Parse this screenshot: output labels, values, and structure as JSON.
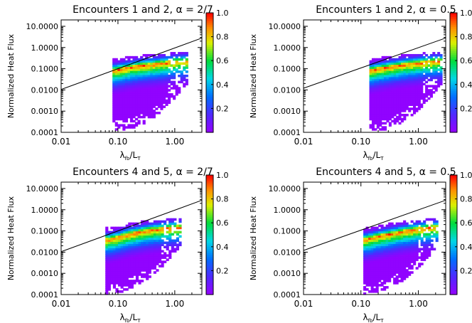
{
  "chart_data": [
    {
      "type": "heatmap",
      "title": "Encounters 1 and 2, α = 2/7",
      "xlabel": "λ",
      "xlabel_sub1": "fb",
      "xlabel_sep": "/L",
      "xlabel_sub2": "T",
      "ylabel": "Normalized Heat Flux",
      "xscale": "log",
      "yscale": "log",
      "xlim": [
        0.01,
        3.0
      ],
      "ylim": [
        0.0001,
        20.0
      ],
      "xticks": [
        0.01,
        0.1,
        1.0
      ],
      "xtick_labels": [
        "0.01",
        "0.10",
        "1.00"
      ],
      "yticks": [
        0.0001,
        0.001,
        0.01,
        0.1,
        1.0,
        10.0
      ],
      "ytick_labels": [
        "0.0001",
        "0.0010",
        "0.0100",
        "0.1000",
        "1.0000",
        "10.0000"
      ],
      "colorbar": {
        "range": [
          0,
          1.0
        ],
        "ticks": [
          0.2,
          0.4,
          0.6,
          0.8,
          1.0
        ],
        "tick_labels": [
          "0.2",
          "0.4",
          "0.6",
          "0.8",
          "1.0"
        ]
      },
      "reference_line": {
        "slope": 1.2857,
        "points": [
          [
            0.01,
            0.0105
          ],
          [
            3.0,
            2.8
          ]
        ]
      },
      "ridge": [
        [
          0.09,
          0.085
        ],
        [
          0.12,
          0.1
        ],
        [
          0.2,
          0.13
        ],
        [
          0.4,
          0.16
        ],
        [
          0.8,
          0.2
        ],
        [
          1.5,
          0.23
        ]
      ],
      "x_extent": [
        0.08,
        1.7
      ],
      "y_min": 0.0001,
      "y_top": 0.75,
      "ridge_at_min_x": 0.085
    },
    {
      "type": "heatmap",
      "title": "Encounters 1 and 2, α = 0.5",
      "xlabel": "λ",
      "xlabel_sub1": "fb",
      "xlabel_sep": "/L",
      "xlabel_sub2": "T",
      "ylabel": "Normalized Heat Flux",
      "xscale": "log",
      "yscale": "log",
      "xlim": [
        0.01,
        3.0
      ],
      "ylim": [
        0.0001,
        20.0
      ],
      "xticks": [
        0.01,
        0.1,
        1.0
      ],
      "xtick_labels": [
        "0.01",
        "0.10",
        "1.00"
      ],
      "yticks": [
        0.0001,
        0.001,
        0.01,
        0.1,
        1.0,
        10.0
      ],
      "ytick_labels": [
        "0.0001",
        "0.0010",
        "0.0100",
        "0.1000",
        "1.0000",
        "10.0000"
      ],
      "colorbar": {
        "range": [
          0,
          1.0
        ],
        "ticks": [
          0.2,
          0.4,
          0.6,
          0.8,
          1.0
        ],
        "tick_labels": [
          "0.2",
          "0.4",
          "0.6",
          "0.8",
          "1.0"
        ]
      },
      "reference_line": {
        "slope": 0.96,
        "points": [
          [
            0.01,
            0.012
          ],
          [
            3.0,
            2.8
          ]
        ]
      },
      "ridge": [
        [
          0.15,
          0.085
        ],
        [
          0.2,
          0.1
        ],
        [
          0.35,
          0.13
        ],
        [
          0.6,
          0.16
        ],
        [
          1.2,
          0.2
        ],
        [
          2.2,
          0.23
        ]
      ],
      "x_extent": [
        0.14,
        2.6
      ],
      "y_min": 0.0001,
      "y_top": 0.75,
      "ridge_at_min_x": 0.085
    },
    {
      "type": "heatmap",
      "title": "Encounters 4 and 5, α = 2/7",
      "xlabel": "λ",
      "xlabel_sub1": "fb",
      "xlabel_sep": "/L",
      "xlabel_sub2": "T",
      "ylabel": "Normalized Heat Flux",
      "xscale": "log",
      "yscale": "log",
      "xlim": [
        0.01,
        3.0
      ],
      "ylim": [
        0.0001,
        20.0
      ],
      "xticks": [
        0.01,
        0.1,
        1.0
      ],
      "xtick_labels": [
        "0.01",
        "0.10",
        "1.00"
      ],
      "yticks": [
        0.0001,
        0.001,
        0.01,
        0.1,
        1.0,
        10.0
      ],
      "ytick_labels": [
        "0.0001",
        "0.0010",
        "0.0100",
        "0.1000",
        "1.0000",
        "10.0000"
      ],
      "colorbar": {
        "range": [
          0,
          1.0
        ],
        "ticks": [
          0.2,
          0.4,
          0.6,
          0.8,
          1.0
        ],
        "tick_labels": [
          "0.2",
          "0.4",
          "0.6",
          "0.8",
          "1.0"
        ]
      },
      "reference_line": {
        "slope": 1.2857,
        "points": [
          [
            0.01,
            0.0105
          ],
          [
            3.0,
            2.8
          ]
        ]
      },
      "ridge": [
        [
          0.07,
          0.04
        ],
        [
          0.1,
          0.05
        ],
        [
          0.15,
          0.07
        ],
        [
          0.3,
          0.1
        ],
        [
          0.6,
          0.13
        ],
        [
          1.1,
          0.15
        ]
      ],
      "x_extent": [
        0.06,
        1.3
      ],
      "y_min": 0.0001,
      "y_top": 1.0,
      "ridge_at_min_x": 0.04
    },
    {
      "type": "heatmap",
      "title": "Encounters 4 and 5, α = 0.5",
      "xlabel": "λ",
      "xlabel_sub1": "fb",
      "xlabel_sep": "/L",
      "xlabel_sub2": "T",
      "ylabel": "Normalized Heat Flux",
      "xscale": "log",
      "yscale": "log",
      "xlim": [
        0.01,
        3.0
      ],
      "ylim": [
        0.0001,
        20.0
      ],
      "xticks": [
        0.01,
        0.1,
        1.0
      ],
      "xtick_labels": [
        "0.01",
        "0.10",
        "1.00"
      ],
      "yticks": [
        0.0001,
        0.001,
        0.01,
        0.1,
        1.0,
        10.0
      ],
      "ytick_labels": [
        "0.0001",
        "0.0010",
        "0.0100",
        "0.1000",
        "1.0000",
        "10.0000"
      ],
      "colorbar": {
        "range": [
          0,
          1.0
        ],
        "ticks": [
          0.2,
          0.4,
          0.6,
          0.8,
          1.0
        ],
        "tick_labels": [
          "0.2",
          "0.4",
          "0.6",
          "0.8",
          "1.0"
        ]
      },
      "reference_line": {
        "slope": 0.96,
        "points": [
          [
            0.01,
            0.012
          ],
          [
            3.0,
            2.8
          ]
        ]
      },
      "ridge": [
        [
          0.12,
          0.04
        ],
        [
          0.17,
          0.05
        ],
        [
          0.3,
          0.07
        ],
        [
          0.6,
          0.1
        ],
        [
          1.2,
          0.13
        ],
        [
          2.0,
          0.15
        ]
      ],
      "x_extent": [
        0.11,
        2.2
      ],
      "y_min": 0.0001,
      "y_top": 1.0,
      "ridge_at_min_x": 0.04
    }
  ]
}
